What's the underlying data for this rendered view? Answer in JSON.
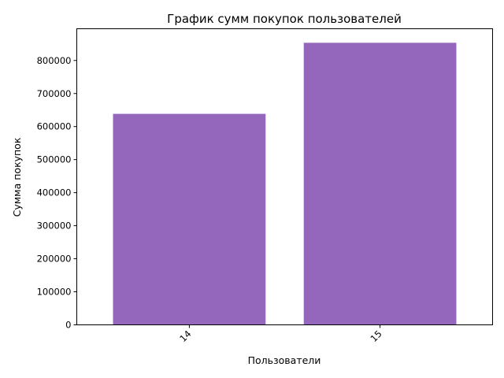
{
  "chart_data": {
    "type": "bar",
    "title": "График сумм покупок пользователей",
    "xlabel": "Пользователи",
    "ylabel": "Сумма покупок",
    "categories": [
      "14",
      "15"
    ],
    "values": [
      638500,
      853500
    ],
    "ylim": [
      0,
      896000
    ],
    "yticks": [
      0,
      100000,
      200000,
      300000,
      400000,
      500000,
      600000,
      700000,
      800000
    ],
    "ytick_labels": [
      "0",
      "100000",
      "200000",
      "300000",
      "400000",
      "500000",
      "600000",
      "700000",
      "800000"
    ],
    "bar_color": "#9467bd",
    "grid": false,
    "legend": "none"
  }
}
